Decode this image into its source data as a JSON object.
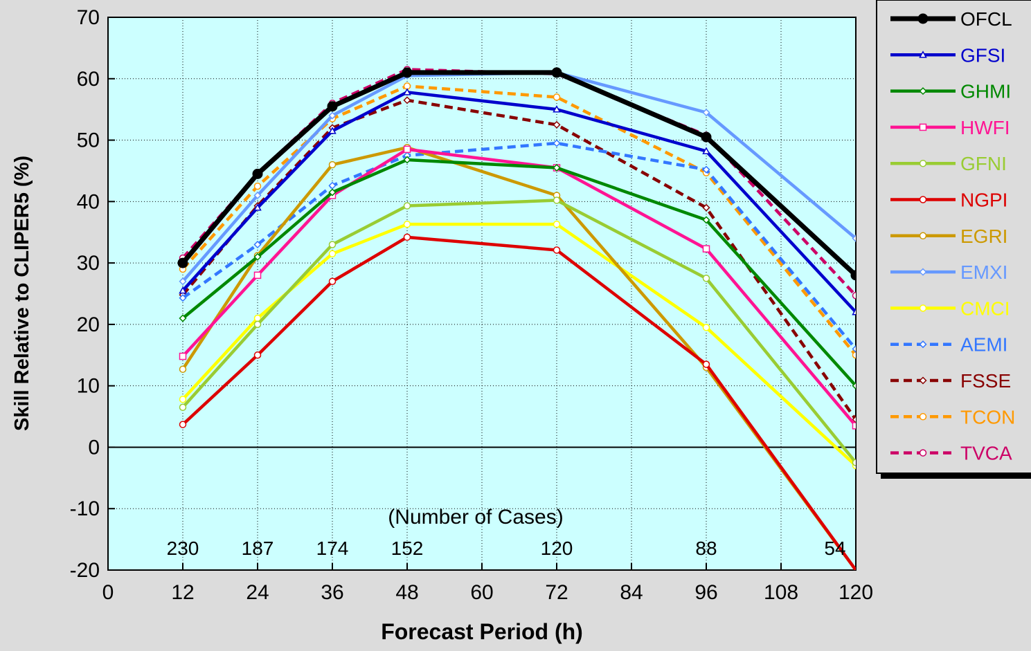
{
  "chart_data": {
    "type": "line",
    "xlabel": "Forecast Period (h)",
    "ylabel": "Skill Relative to CLIPER5 (%)",
    "xlim": [
      0,
      120
    ],
    "ylim": [
      -20,
      70
    ],
    "xticks": [
      0,
      12,
      24,
      36,
      48,
      60,
      72,
      84,
      96,
      108,
      120
    ],
    "yticks": [
      -20,
      -10,
      0,
      10,
      20,
      30,
      40,
      50,
      60,
      70
    ],
    "grid": true,
    "legend_position": "right",
    "background_color": "#ccffff",
    "cases_title": "(Number of Cases)",
    "cases": [
      {
        "x": 12,
        "label": "230"
      },
      {
        "x": 24,
        "label": "187"
      },
      {
        "x": 36,
        "label": "174"
      },
      {
        "x": 48,
        "label": "152"
      },
      {
        "x": 72,
        "label": "120"
      },
      {
        "x": 96,
        "label": "88"
      },
      {
        "x": 120,
        "label": "54"
      }
    ],
    "x": [
      12,
      24,
      36,
      48,
      72,
      96,
      120
    ],
    "series": [
      {
        "name": "OFCL",
        "color": "#000000",
        "dash": false,
        "marker": "filled-circle",
        "values": [
          30,
          44.5,
          55.5,
          61,
          61,
          50.5,
          28
        ]
      },
      {
        "name": "GFSI",
        "color": "#0000cc",
        "dash": false,
        "marker": "triangle",
        "values": [
          25.5,
          39,
          51.5,
          57.8,
          55,
          48.2,
          22
        ]
      },
      {
        "name": "GHMI",
        "color": "#008800",
        "dash": false,
        "marker": "diamond",
        "values": [
          21,
          31,
          41.5,
          46.8,
          45.5,
          37,
          10
        ]
      },
      {
        "name": "HWFI",
        "color": "#ff1493",
        "dash": false,
        "marker": "square",
        "values": [
          14.8,
          28,
          41,
          48.5,
          45.5,
          32.3,
          3.5
        ]
      },
      {
        "name": "GFNI",
        "color": "#99cc33",
        "dash": false,
        "marker": "circle",
        "values": [
          6.5,
          20,
          33,
          39.3,
          40.2,
          27.5,
          -2.5
        ]
      },
      {
        "name": "NGPI",
        "color": "#dd0000",
        "dash": false,
        "marker": "circle",
        "values": [
          3.7,
          15,
          27,
          34.2,
          32.1,
          13.5,
          -20
        ]
      },
      {
        "name": "EGRI",
        "color": "#cc9900",
        "dash": false,
        "marker": "circle",
        "values": [
          12.7,
          31.2,
          46,
          48.8,
          41,
          13,
          -20
        ]
      },
      {
        "name": "EMXI",
        "color": "#6699ff",
        "dash": false,
        "marker": "diamond",
        "values": [
          27,
          41,
          54,
          60.5,
          61,
          54.5,
          34
        ]
      },
      {
        "name": "CMCI",
        "color": "#ffff00",
        "dash": false,
        "marker": "circle",
        "values": [
          7.8,
          21,
          31.5,
          36.3,
          36.3,
          19.5,
          -3
        ]
      },
      {
        "name": "AEMI",
        "color": "#3377ff",
        "dash": true,
        "marker": "diamond",
        "values": [
          24.3,
          33,
          42.6,
          47.5,
          49.5,
          45.2,
          16
        ]
      },
      {
        "name": "FSSE",
        "color": "#880000",
        "dash": true,
        "marker": "diamond",
        "values": [
          24.8,
          39.3,
          52,
          56.5,
          52.5,
          39,
          4.5
        ]
      },
      {
        "name": "TCON",
        "color": "#ff9900",
        "dash": true,
        "marker": "circle",
        "values": [
          29,
          42.5,
          53.5,
          58.8,
          57,
          44.7,
          15
        ]
      },
      {
        "name": "TVCA",
        "color": "#cc0066",
        "dash": true,
        "marker": "circle",
        "values": [
          30.8,
          44.5,
          56,
          61.5,
          60.8,
          50.8,
          24.7
        ]
      }
    ]
  }
}
